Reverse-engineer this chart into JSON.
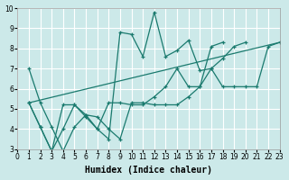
{
  "xlabel": "Humidex (Indice chaleur)",
  "xlim": [
    0,
    23
  ],
  "ylim": [
    3,
    10
  ],
  "xticks": [
    0,
    1,
    2,
    3,
    4,
    5,
    6,
    7,
    8,
    9,
    10,
    11,
    12,
    13,
    14,
    15,
    16,
    17,
    18,
    19,
    20,
    21,
    22,
    23
  ],
  "yticks": [
    3,
    4,
    5,
    6,
    7,
    8,
    9,
    10
  ],
  "bg_color": "#cce9e9",
  "grid_color": "#ffffff",
  "line_color": "#1a7a6e",
  "series": [
    {
      "x": [
        1,
        2,
        3,
        4,
        5,
        6,
        7,
        8,
        9,
        10,
        11,
        12,
        13,
        14,
        15,
        16,
        17,
        18,
        19,
        20,
        21,
        22,
        23
      ],
      "y": [
        7.0,
        5.3,
        4.1,
        2.9,
        4.1,
        4.7,
        4.6,
        4.0,
        3.5,
        5.3,
        5.3,
        5.2,
        5.2,
        5.2,
        5.6,
        6.1,
        7.0,
        6.1,
        6.1,
        6.1,
        6.1,
        8.1,
        8.3
      ]
    },
    {
      "x": [
        1,
        2,
        3,
        4,
        5,
        6,
        7,
        8,
        9,
        10,
        11,
        12,
        13,
        14,
        15,
        16,
        17,
        18,
        19,
        20,
        21,
        22,
        23
      ],
      "y": [
        5.3,
        4.1,
        2.9,
        4.0,
        5.2,
        4.6,
        4.0,
        3.5,
        8.8,
        8.7,
        7.6,
        9.8,
        7.6,
        7.9,
        8.4,
        6.9,
        7.0,
        7.5,
        8.1,
        8.3,
        null,
        null,
        null
      ]
    },
    {
      "x": [
        1,
        2,
        3,
        4,
        5,
        6,
        7,
        8,
        9,
        10,
        11,
        12,
        13,
        14,
        15,
        16,
        17,
        18,
        19,
        20,
        21,
        22,
        23
      ],
      "y": [
        5.3,
        4.1,
        2.9,
        5.2,
        5.2,
        4.7,
        4.0,
        5.3,
        5.3,
        5.2,
        5.2,
        5.6,
        6.1,
        7.0,
        6.1,
        6.1,
        8.1,
        8.3,
        null,
        null,
        null,
        null,
        null
      ]
    },
    {
      "x": [
        1,
        23
      ],
      "y": [
        5.3,
        8.3
      ]
    }
  ]
}
